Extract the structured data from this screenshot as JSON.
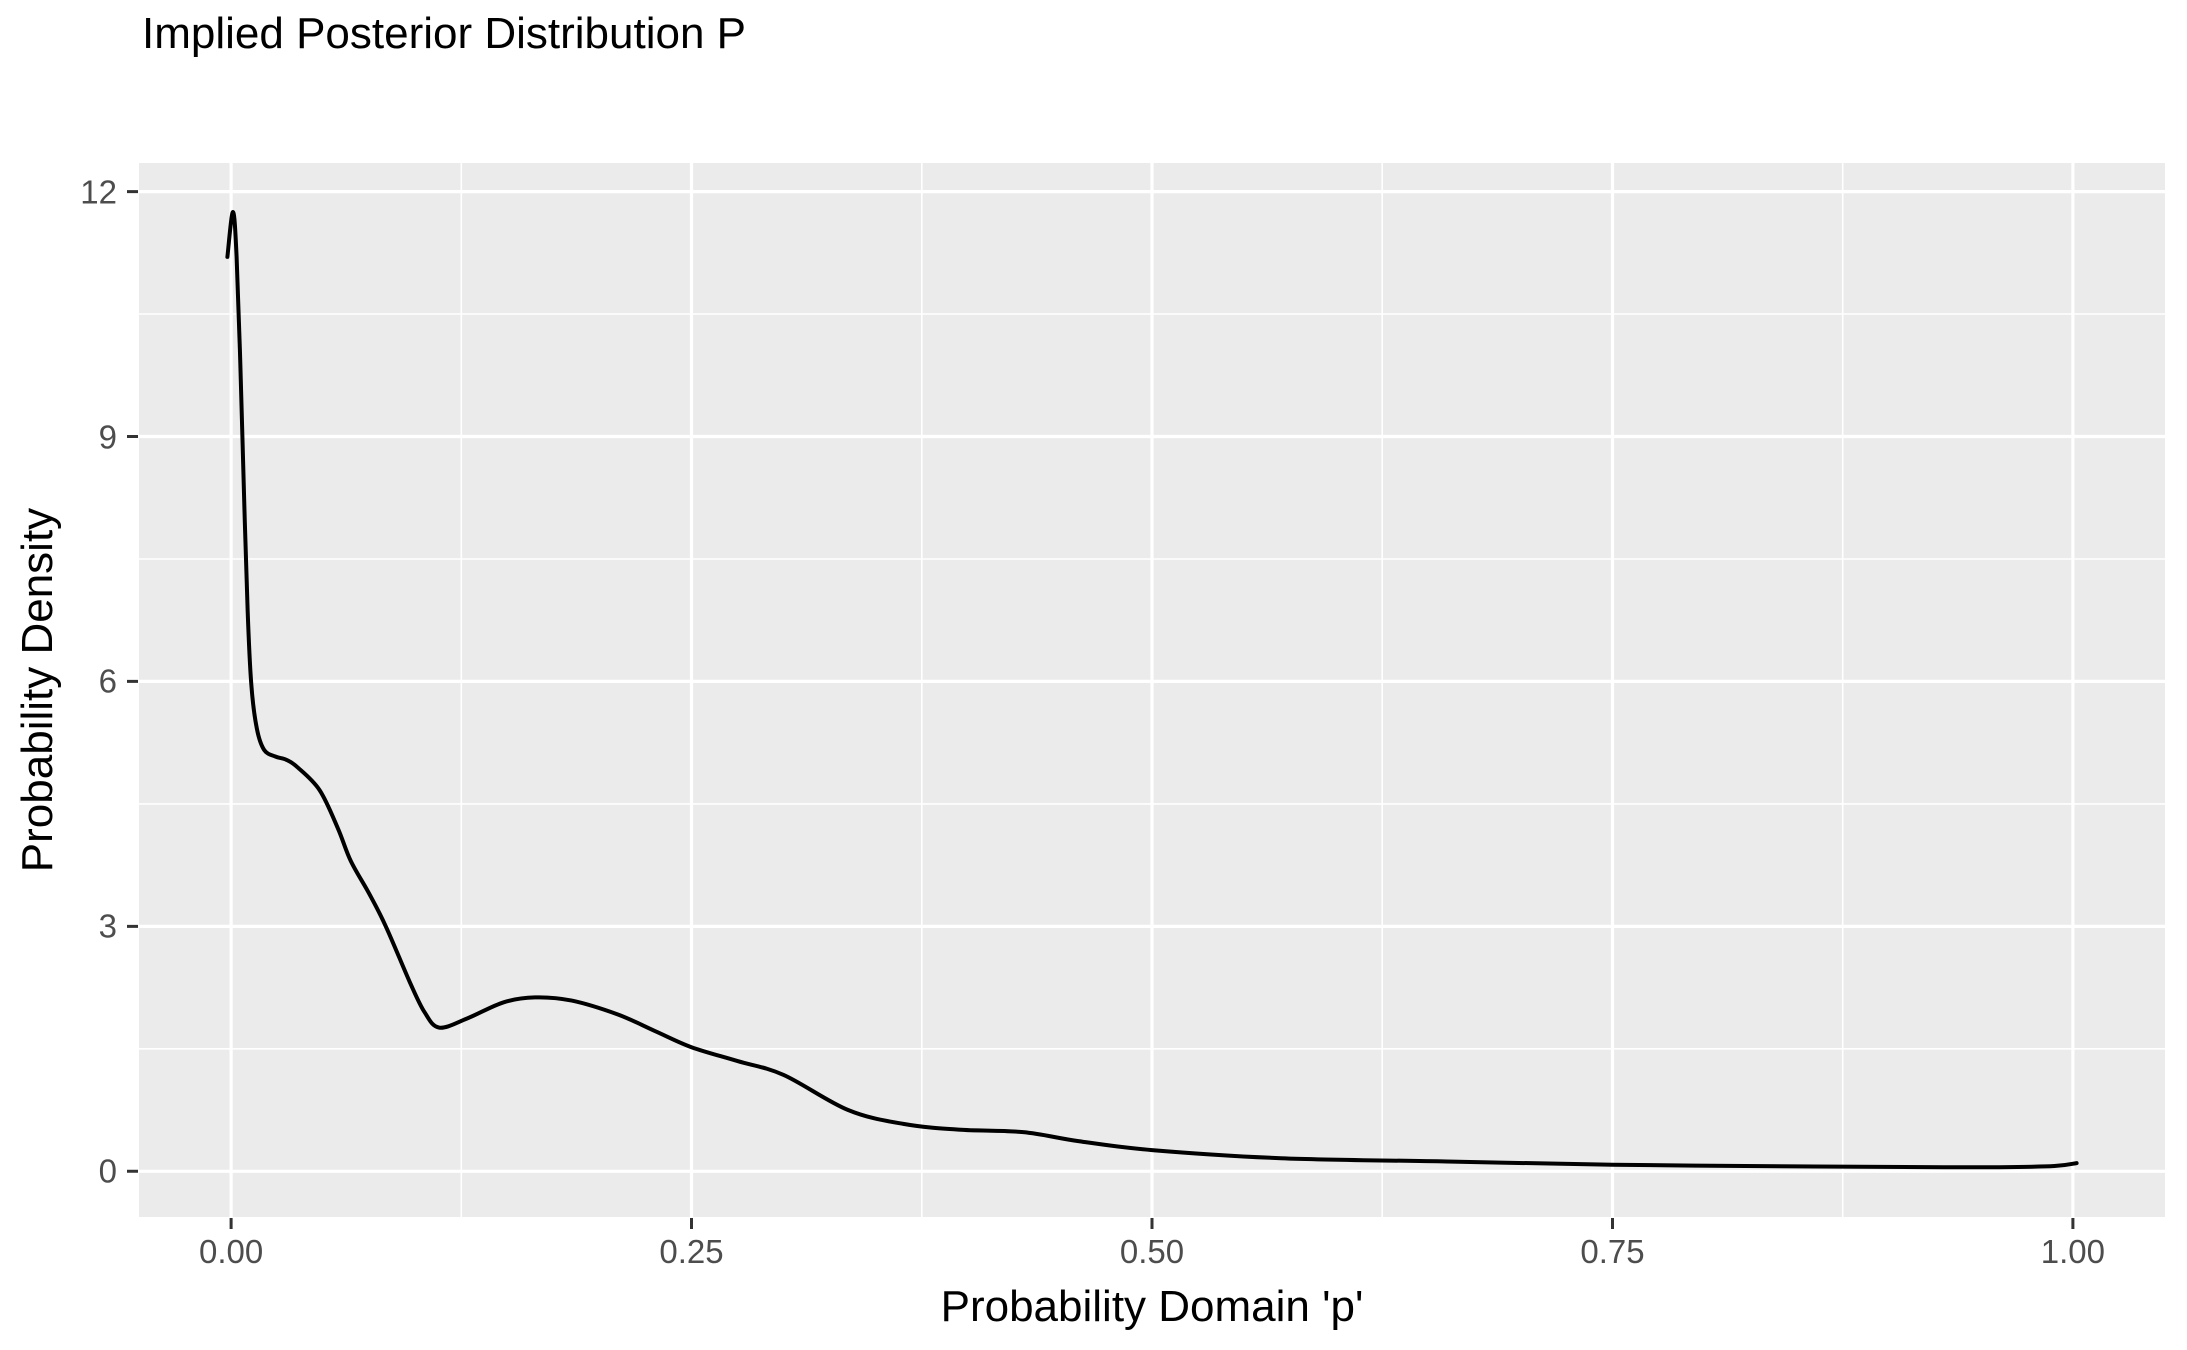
{
  "colors": {
    "background": "#FFFFFF",
    "panel_background": "#EBEBEB",
    "gridline": "#FFFFFF",
    "curve": "#000000",
    "tick_label": "#4D4D4D",
    "tick_mark": "#333333",
    "title_text": "#000000"
  },
  "chart_data": {
    "type": "line",
    "title": "Implied Posterior Distribution P",
    "xlabel": "Probability Domain 'p'",
    "ylabel": "Probability Density",
    "xlim": [
      -0.05,
      1.05
    ],
    "ylim": [
      -0.56,
      12.35
    ],
    "grid": true,
    "legend": false,
    "x_ticks": [
      0,
      0.25,
      0.5,
      0.75,
      1.0
    ],
    "x_tick_labels": [
      "0.00",
      "0.25",
      "0.50",
      "0.75",
      "1.00"
    ],
    "x_minor_ticks": [
      0.125,
      0.375,
      0.625,
      0.875
    ],
    "y_ticks": [
      0,
      3,
      6,
      9,
      12
    ],
    "y_tick_labels": [
      "0",
      "3",
      "6",
      "9",
      "12"
    ],
    "y_minor_ticks": [
      1.5,
      4.5,
      7.5,
      10.5
    ],
    "series": [
      {
        "name": "posterior-density",
        "color": "#000000",
        "points": [
          [
            -0.002,
            11.2
          ],
          [
            0.001,
            11.75
          ],
          [
            0.003,
            11.2
          ],
          [
            0.005,
            9.9
          ],
          [
            0.007,
            8.3
          ],
          [
            0.009,
            6.85
          ],
          [
            0.011,
            5.95
          ],
          [
            0.014,
            5.42
          ],
          [
            0.018,
            5.16
          ],
          [
            0.024,
            5.08
          ],
          [
            0.03,
            5.04
          ],
          [
            0.036,
            4.95
          ],
          [
            0.048,
            4.67
          ],
          [
            0.058,
            4.2
          ],
          [
            0.065,
            3.8
          ],
          [
            0.075,
            3.4
          ],
          [
            0.084,
            3.0
          ],
          [
            0.097,
            2.32
          ],
          [
            0.105,
            1.95
          ],
          [
            0.113,
            1.76
          ],
          [
            0.128,
            1.87
          ],
          [
            0.148,
            2.07
          ],
          [
            0.165,
            2.13
          ],
          [
            0.185,
            2.09
          ],
          [
            0.21,
            1.92
          ],
          [
            0.23,
            1.72
          ],
          [
            0.25,
            1.52
          ],
          [
            0.275,
            1.35
          ],
          [
            0.3,
            1.18
          ],
          [
            0.335,
            0.75
          ],
          [
            0.365,
            0.58
          ],
          [
            0.395,
            0.51
          ],
          [
            0.43,
            0.48
          ],
          [
            0.46,
            0.37
          ],
          [
            0.5,
            0.26
          ],
          [
            0.57,
            0.16
          ],
          [
            0.66,
            0.12
          ],
          [
            0.75,
            0.08
          ],
          [
            0.85,
            0.06
          ],
          [
            0.93,
            0.05
          ],
          [
            0.96,
            0.05
          ],
          [
            0.99,
            0.065
          ],
          [
            1.002,
            0.1
          ]
        ]
      }
    ]
  }
}
